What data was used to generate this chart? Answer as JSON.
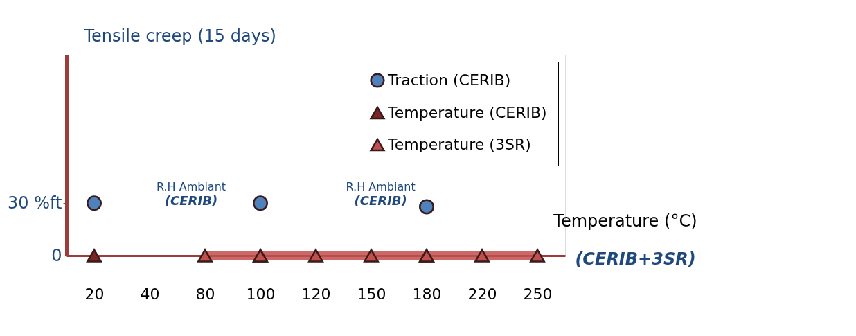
{
  "chart_data": {
    "type": "scatter",
    "ylabel": "Tensile creep (15 days)",
    "xlabel": "Temperature (°C)",
    "categories": [
      "20",
      "40",
      "80",
      "100",
      "120",
      "150",
      "180",
      "220",
      "250"
    ],
    "series": [
      {
        "name": "Traction (CERIB)",
        "color": "#4f81bd",
        "marker": "circle",
        "values": [
          30,
          null,
          null,
          30,
          null,
          null,
          28,
          null,
          null
        ]
      },
      {
        "name": "Temperature (CERIB)",
        "color": "#7b2525",
        "marker": "triangle",
        "values": [
          0,
          null,
          null,
          0,
          null,
          null,
          0,
          null,
          null
        ]
      },
      {
        "name": "Temperature (3SR)",
        "type": "line",
        "color": "#c0504d",
        "marker": "triangle",
        "values": [
          null,
          null,
          0,
          0,
          0,
          0,
          0,
          0,
          0
        ]
      }
    ],
    "ylim": [
      0,
      115
    ],
    "yticks": [
      0,
      {
        "value": 30,
        "label": "30 %ft"
      }
    ],
    "annotations": [
      "R.H Ambiant",
      "(CERIB)",
      "R.H Ambiant",
      "(CERIB)",
      "(CERIB+3SR)"
    ],
    "legend": "top right",
    "grid": false
  }
}
